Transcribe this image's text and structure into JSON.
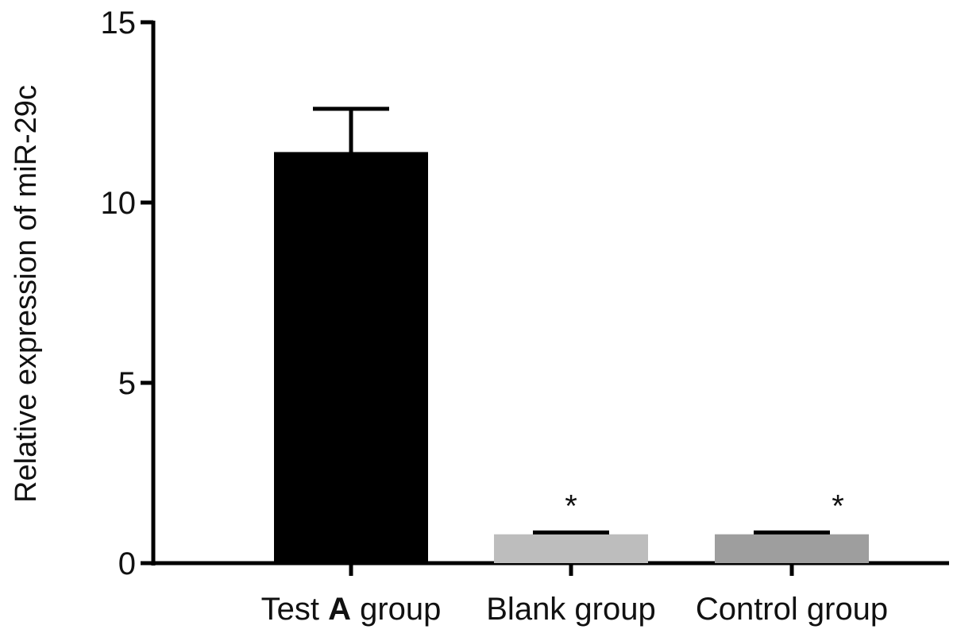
{
  "chart_data": {
    "type": "bar",
    "title": "",
    "xlabel": "",
    "ylabel": "Relative expression of miR-29c",
    "ylim": [
      0,
      15
    ],
    "yticks": [
      0,
      5,
      10,
      15
    ],
    "categories": [
      {
        "prefix": "Test ",
        "emph": "A",
        "suffix": " group"
      },
      {
        "prefix": "Blank group",
        "emph": "",
        "suffix": ""
      },
      {
        "prefix": "Control group",
        "emph": "",
        "suffix": ""
      }
    ],
    "values": [
      11.4,
      0.8,
      0.8
    ],
    "error": [
      1.2,
      0.05,
      0.05
    ],
    "colors": [
      "#000000",
      "#bdbdbd",
      "#9e9e9e"
    ],
    "error_bar_color": "#000000",
    "annotations": [
      "",
      "*",
      "*"
    ],
    "grid": false,
    "legend": "none"
  }
}
